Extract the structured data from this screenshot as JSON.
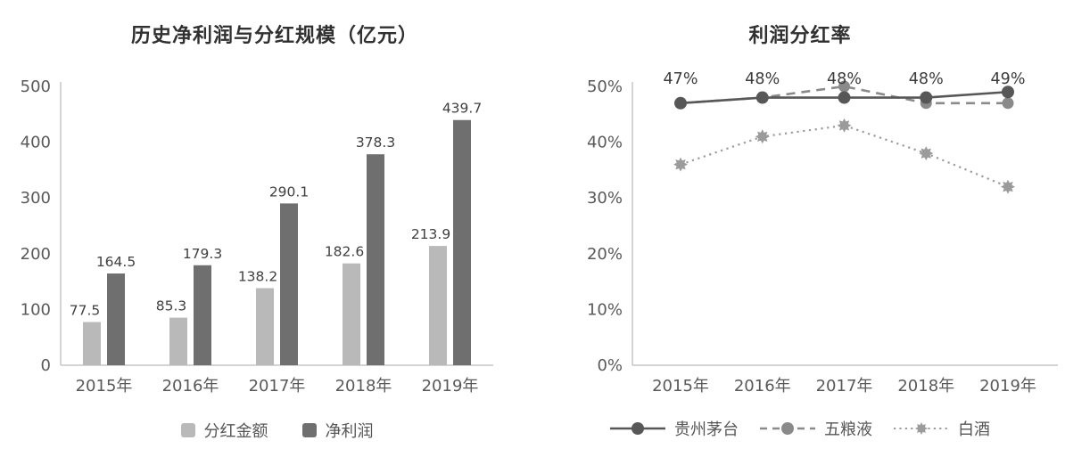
{
  "page": {
    "background": "#ffffff"
  },
  "chart_data": [
    {
      "type": "bar",
      "title": "历史净利润与分红规模（亿元）",
      "categories": [
        "2015年",
        "2016年",
        "2017年",
        "2018年",
        "2019年"
      ],
      "series": [
        {
          "name": "分红金额",
          "values": [
            77.5,
            85.3,
            138.2,
            182.6,
            213.9
          ],
          "labels": [
            "77.5",
            "85.3",
            "138.2",
            "182.6",
            "213.9"
          ],
          "color": "#b9b9b9"
        },
        {
          "name": "净利润",
          "values": [
            164.5,
            179.3,
            290.1,
            378.3,
            439.7
          ],
          "labels": [
            "164.5",
            "179.3",
            "290.1",
            "378.3",
            "439.7"
          ],
          "color": "#6f6f6f"
        }
      ],
      "ylim": [
        0,
        500
      ],
      "yticks": [
        "0",
        "100",
        "200",
        "300",
        "400",
        "500"
      ],
      "grid": false,
      "legend_position": "bottom",
      "axis_color": "#c6c6c6",
      "tick_color": "#595959"
    },
    {
      "type": "line",
      "title": "利润分红率",
      "categories": [
        "2015年",
        "2016年",
        "2017年",
        "2018年",
        "2019年"
      ],
      "series": [
        {
          "name": "贵州茅台",
          "values": [
            47,
            48,
            48,
            48,
            49
          ],
          "style": "solid",
          "marker": "circle",
          "color": "#575757",
          "data_labels": [
            "47%",
            "48%",
            "48%",
            "48%",
            "49%"
          ]
        },
        {
          "name": "五粮液",
          "values": [
            47,
            48,
            50,
            47,
            47
          ],
          "style": "dashed",
          "marker": "circle",
          "color": "#8a8a8a"
        },
        {
          "name": "白酒",
          "values": [
            36,
            41,
            43,
            38,
            32
          ],
          "style": "dotted",
          "marker": "star",
          "color": "#9b9b9b"
        }
      ],
      "ylim": [
        0,
        50
      ],
      "yticks": [
        "0%",
        "10%",
        "20%",
        "30%",
        "40%",
        "50%"
      ],
      "grid": false,
      "legend_position": "bottom",
      "axis_color": "#c6c6c6",
      "tick_color": "#595959"
    }
  ]
}
